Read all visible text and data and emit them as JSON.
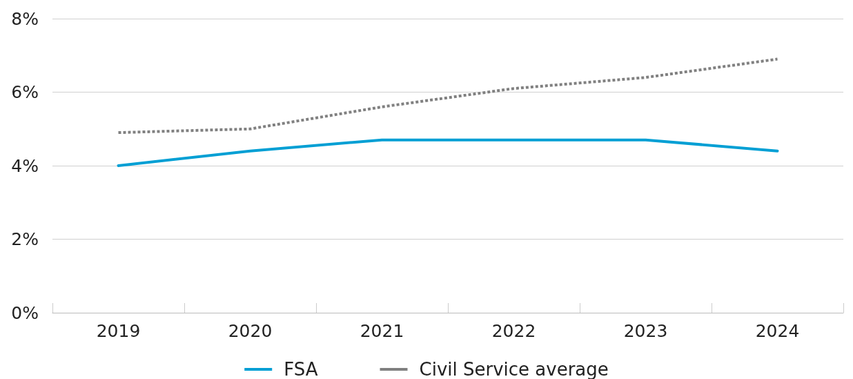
{
  "chart_data": {
    "type": "line",
    "categories": [
      "2019",
      "2020",
      "2021",
      "2022",
      "2023",
      "2024"
    ],
    "series": [
      {
        "name": "FSA",
        "color": "#009fd4",
        "line_style": "solid",
        "values": [
          4.0,
          4.4,
          4.7,
          4.7,
          4.7,
          4.4
        ]
      },
      {
        "name": "Civil Service average",
        "color": "#808080",
        "line_style": "dashed",
        "values": [
          4.9,
          5.0,
          5.6,
          6.1,
          6.4,
          6.9
        ]
      }
    ],
    "ylim": [
      0,
      8
    ],
    "yticks": [
      {
        "value": 0,
        "label": "0%"
      },
      {
        "value": 2,
        "label": "2%"
      },
      {
        "value": 4,
        "label": "4%"
      },
      {
        "value": 6,
        "label": "6%"
      },
      {
        "value": 8,
        "label": "8%"
      }
    ],
    "grid": "y",
    "legend": "bottom",
    "marker": "none"
  }
}
